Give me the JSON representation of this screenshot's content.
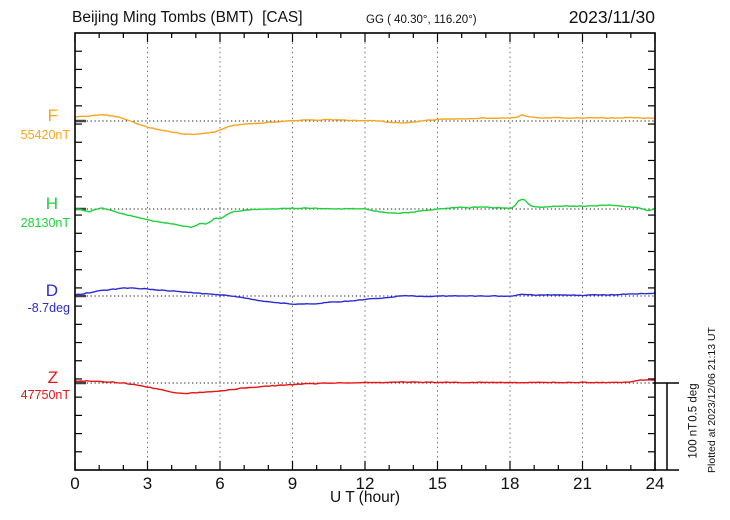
{
  "header": {
    "title": "Beijing Ming Tombs (BMT)  [CAS]",
    "location": "GG ( 40.30°, 116.20°)",
    "date": "2023/11/30"
  },
  "x_axis": {
    "label": "U T (hour)",
    "range": [
      0,
      24
    ],
    "major_tick_step": 3,
    "minor_tick_step": 1
  },
  "scale_bar": {
    "line1": "100 nT",
    "line2": "0.5 deg"
  },
  "footer_note": "Plotted at 2023/12/06 21:13 UT",
  "chart_data": {
    "type": "line",
    "title": "Magnetogram Beijing Ming Tombs (BMT) [CAS] 2023/11/30",
    "xlabel": "U T (hour)",
    "x_range": [
      0,
      24
    ],
    "x_major_ticks": [
      0,
      3,
      6,
      9,
      12,
      15,
      18,
      21,
      24
    ],
    "grid": "dotted vertical at 3h; dotted horizontal baseline per component",
    "scale": {
      "nT_per_division": 100,
      "deg_per_division": 0.5
    },
    "series": [
      {
        "name": "F",
        "unit": "nT",
        "baseline_label": "55420nT",
        "color": "#F9A51A",
        "points": [
          [
            0,
            4.6
          ],
          [
            0.5,
            5.7
          ],
          [
            1,
            6.9
          ],
          [
            1.3,
            6.9
          ],
          [
            1.8,
            4.6
          ],
          [
            2.2,
            1.1
          ],
          [
            2.6,
            -3.4
          ],
          [
            3,
            -6.9
          ],
          [
            3.5,
            -10.3
          ],
          [
            4,
            -12.6
          ],
          [
            4.5,
            -14.9
          ],
          [
            5,
            -15.5
          ],
          [
            5.5,
            -13.8
          ],
          [
            5.8,
            -12.6
          ],
          [
            6,
            -10.3
          ],
          [
            6.3,
            -6.9
          ],
          [
            6.6,
            -4.6
          ],
          [
            7,
            -3.4
          ],
          [
            7.5,
            -2.9
          ],
          [
            8,
            -1.7
          ],
          [
            8.5,
            -0.6
          ],
          [
            9,
            0.6
          ],
          [
            9.5,
            1.1
          ],
          [
            10,
            1.1
          ],
          [
            10.5,
            1.7
          ],
          [
            11,
            1.1
          ],
          [
            11.5,
            0.6
          ],
          [
            12,
            0.6
          ],
          [
            12.5,
            0
          ],
          [
            13,
            -1.1
          ],
          [
            13.5,
            -2.3
          ],
          [
            14,
            -1.1
          ],
          [
            14.5,
            0.6
          ],
          [
            15,
            1.7
          ],
          [
            15.5,
            2.3
          ],
          [
            16,
            2.3
          ],
          [
            16.5,
            2.9
          ],
          [
            17,
            3.4
          ],
          [
            17.5,
            3.4
          ],
          [
            18,
            3.4
          ],
          [
            18.3,
            4.6
          ],
          [
            18.5,
            7.5
          ],
          [
            18.8,
            4.6
          ],
          [
            19,
            4
          ],
          [
            19.5,
            3.4
          ],
          [
            20,
            4
          ],
          [
            20.5,
            3.4
          ],
          [
            21,
            3.4
          ],
          [
            21.5,
            4
          ],
          [
            22,
            3.4
          ],
          [
            22.5,
            3.4
          ],
          [
            23,
            4
          ],
          [
            23.5,
            3.4
          ],
          [
            24,
            3.4
          ]
        ]
      },
      {
        "name": "H",
        "unit": "nT",
        "baseline_label": "28130nT",
        "color": "#1ED13C",
        "points": [
          [
            0,
            0
          ],
          [
            0.3,
            -1.1
          ],
          [
            0.6,
            -3.4
          ],
          [
            0.9,
            0
          ],
          [
            1.1,
            1.1
          ],
          [
            1.4,
            -1.1
          ],
          [
            1.7,
            -3.4
          ],
          [
            2,
            -5.7
          ],
          [
            2.5,
            -9.2
          ],
          [
            3,
            -12.6
          ],
          [
            3.5,
            -14.9
          ],
          [
            4,
            -17.2
          ],
          [
            4.5,
            -19.5
          ],
          [
            4.8,
            -20.7
          ],
          [
            5,
            -19.5
          ],
          [
            5.2,
            -16.1
          ],
          [
            5.4,
            -17.2
          ],
          [
            5.6,
            -14.9
          ],
          [
            5.8,
            -10.3
          ],
          [
            6,
            -11.5
          ],
          [
            6.2,
            -8
          ],
          [
            6.5,
            -3.4
          ],
          [
            7,
            -1.7
          ],
          [
            7.5,
            -0.6
          ],
          [
            8,
            0
          ],
          [
            8.5,
            0.6
          ],
          [
            9,
            0.6
          ],
          [
            9.5,
            1.1
          ],
          [
            10,
            0.6
          ],
          [
            10.5,
            0.6
          ],
          [
            11,
            0
          ],
          [
            11.5,
            0.6
          ],
          [
            12,
            0
          ],
          [
            12.4,
            -2.3
          ],
          [
            12.8,
            -4
          ],
          [
            13.2,
            -4.6
          ],
          [
            13.6,
            -4.6
          ],
          [
            14,
            -3.4
          ],
          [
            14.5,
            -1.7
          ],
          [
            15,
            0
          ],
          [
            15.5,
            1.1
          ],
          [
            16,
            2.3
          ],
          [
            16.3,
            1.1
          ],
          [
            16.6,
            2.3
          ],
          [
            17,
            2.3
          ],
          [
            17.4,
            1.1
          ],
          [
            17.7,
            1.7
          ],
          [
            18,
            0.6
          ],
          [
            18.2,
            3.4
          ],
          [
            18.4,
            11.5
          ],
          [
            18.6,
            10.3
          ],
          [
            18.8,
            4.6
          ],
          [
            19,
            2.3
          ],
          [
            19.5,
            2.3
          ],
          [
            20,
            3.4
          ],
          [
            20.5,
            3.4
          ],
          [
            21,
            3.4
          ],
          [
            21.5,
            3.4
          ],
          [
            22,
            4.6
          ],
          [
            22.5,
            3.4
          ],
          [
            23,
            2.3
          ],
          [
            23.4,
            1.1
          ],
          [
            23.7,
            -2.3
          ],
          [
            24,
            0.6
          ]
        ]
      },
      {
        "name": "D",
        "unit": "deg",
        "baseline_label": "-8.7deg",
        "color": "#2B2BD5",
        "points": [
          [
            0,
            0.006
          ],
          [
            0.5,
            0.017
          ],
          [
            1,
            0.029
          ],
          [
            1.5,
            0.037
          ],
          [
            2,
            0.046
          ],
          [
            2.3,
            0.046
          ],
          [
            2.7,
            0.043
          ],
          [
            3,
            0.04
          ],
          [
            3.5,
            0.034
          ],
          [
            4,
            0.029
          ],
          [
            4.5,
            0.023
          ],
          [
            5,
            0.017
          ],
          [
            5.5,
            0.011
          ],
          [
            6,
            0.006
          ],
          [
            6.5,
            0
          ],
          [
            7,
            -0.011
          ],
          [
            7.5,
            -0.023
          ],
          [
            8,
            -0.032
          ],
          [
            8.5,
            -0.04
          ],
          [
            9,
            -0.046
          ],
          [
            9.5,
            -0.046
          ],
          [
            10,
            -0.043
          ],
          [
            10.5,
            -0.037
          ],
          [
            11,
            -0.032
          ],
          [
            11.5,
            -0.026
          ],
          [
            12,
            -0.02
          ],
          [
            12.5,
            -0.014
          ],
          [
            13,
            -0.009
          ],
          [
            13.3,
            -0.003
          ],
          [
            13.6,
            0.003
          ],
          [
            14,
            0
          ],
          [
            14.5,
            -0.003
          ],
          [
            15,
            0
          ],
          [
            15.5,
            0
          ],
          [
            16,
            0
          ],
          [
            16.5,
            0
          ],
          [
            17,
            0
          ],
          [
            17.5,
            0
          ],
          [
            18,
            0
          ],
          [
            18.3,
            0.006
          ],
          [
            18.6,
            0.009
          ],
          [
            19,
            0.006
          ],
          [
            19.5,
            0.006
          ],
          [
            20,
            0.006
          ],
          [
            20.5,
            0.006
          ],
          [
            21,
            0.003
          ],
          [
            21.5,
            0.006
          ],
          [
            22,
            0.006
          ],
          [
            22.5,
            0.009
          ],
          [
            23,
            0.011
          ],
          [
            23.5,
            0.014
          ],
          [
            24,
            0.017
          ]
        ]
      },
      {
        "name": "Z",
        "unit": "nT",
        "baseline_label": "47750nT",
        "color": "#E81414",
        "points": [
          [
            0,
            2.3
          ],
          [
            0.5,
            2.3
          ],
          [
            1,
            1.7
          ],
          [
            1.5,
            1.1
          ],
          [
            2,
            0
          ],
          [
            2.5,
            -2.3
          ],
          [
            3,
            -4.6
          ],
          [
            3.5,
            -7.5
          ],
          [
            4,
            -10.3
          ],
          [
            4.4,
            -12.1
          ],
          [
            4.8,
            -11.5
          ],
          [
            5.2,
            -10.9
          ],
          [
            5.6,
            -10.3
          ],
          [
            6,
            -9.2
          ],
          [
            6.5,
            -7.5
          ],
          [
            7,
            -5.7
          ],
          [
            7.5,
            -4.6
          ],
          [
            8,
            -3.4
          ],
          [
            8.5,
            -2.5
          ],
          [
            9,
            -1.7
          ],
          [
            9.5,
            -1.1
          ],
          [
            10,
            -0.7
          ],
          [
            10.5,
            -0.2
          ],
          [
            11,
            0
          ],
          [
            11.5,
            0.3
          ],
          [
            12,
            0.3
          ],
          [
            12.5,
            0.3
          ],
          [
            13,
            0.6
          ],
          [
            13.5,
            1.1
          ],
          [
            13.8,
            0.6
          ],
          [
            14,
            1.1
          ],
          [
            14.3,
            0.6
          ],
          [
            14.6,
            1.1
          ],
          [
            15,
            0.6
          ],
          [
            16,
            0.6
          ],
          [
            17,
            0.6
          ],
          [
            18,
            0.6
          ],
          [
            19,
            0.6
          ],
          [
            20,
            0.6
          ],
          [
            21,
            0.6
          ],
          [
            22,
            0.6
          ],
          [
            22.5,
            0.8
          ],
          [
            23,
            1.1
          ],
          [
            23.3,
            3.2
          ],
          [
            23.6,
            3.4
          ],
          [
            24,
            3.4
          ]
        ]
      }
    ]
  }
}
